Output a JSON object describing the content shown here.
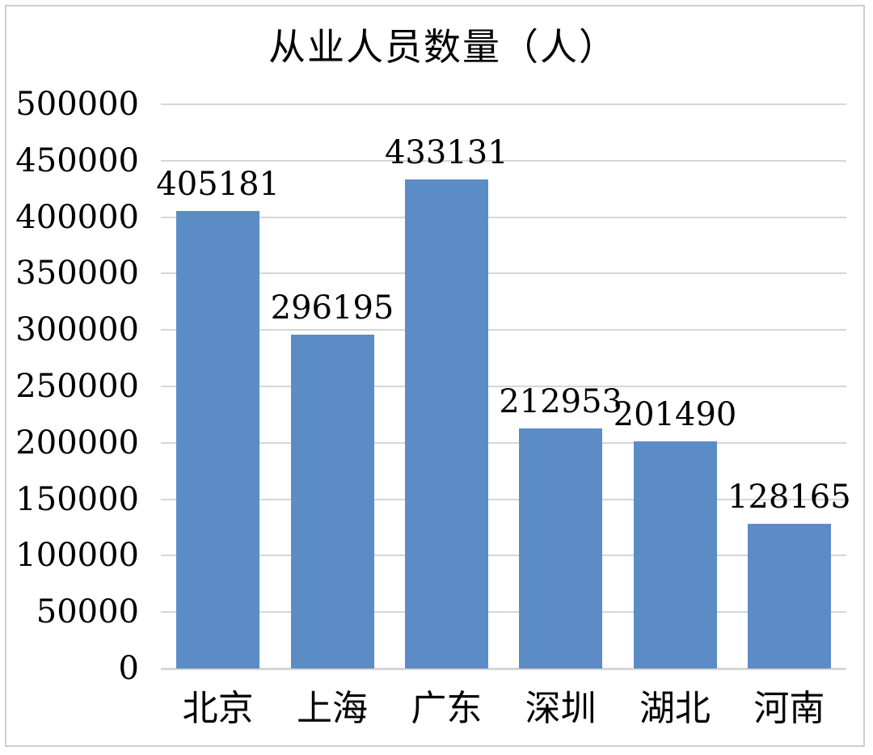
{
  "chart_data": {
    "type": "bar",
    "title": "从业人员数量（人）",
    "categories": [
      "北京",
      "上海",
      "广东",
      "深圳",
      "湖北",
      "河南"
    ],
    "values": [
      405181,
      296195,
      433131,
      212953,
      201490,
      128165
    ],
    "value_labels": [
      "405181",
      "296195",
      "433131",
      "212953",
      "201490",
      "128165"
    ],
    "series": [
      {
        "name": "从业人员数量",
        "values": [
          405181,
          296195,
          433131,
          212953,
          201490,
          128165
        ]
      }
    ],
    "xlabel": "",
    "ylabel": "",
    "ylim": [
      0,
      500000
    ],
    "ytick_step": 50000,
    "yticks": [
      0,
      50000,
      100000,
      150000,
      200000,
      250000,
      300000,
      350000,
      400000,
      450000,
      500000
    ],
    "ytick_labels": [
      "0",
      "50000",
      "100000",
      "150000",
      "200000",
      "250000",
      "300000",
      "350000",
      "400000",
      "450000",
      "500000"
    ],
    "grid": true,
    "legend": false,
    "data_labels": true,
    "bar_color": "#5b8cc6",
    "gridline_color": "#d6d6d6",
    "frame_border_color": "#cdcdcd",
    "text_color": "#000000",
    "background_color": "#ffffff"
  }
}
